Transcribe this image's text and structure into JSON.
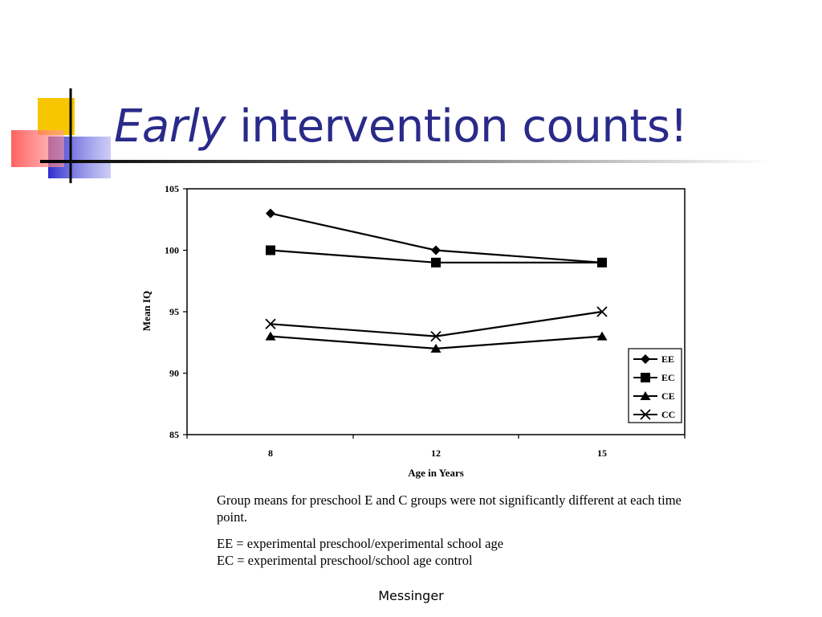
{
  "slide": {
    "title_emphasis": "Early",
    "title_rest": " intervention counts!",
    "footer": "Messinger"
  },
  "colors": {
    "title": "#2a2a8a",
    "ornament_yellow": "#f7c600",
    "ornament_blue": "#2e2ecc",
    "ornament_red": "#ff6b6b"
  },
  "caption": {
    "note": "Group means for preschool E and C groups were not significantly different at each time point.",
    "def_ee": "EE = experimental preschool/experimental school age",
    "def_ec": "EC = experimental preschool/school age control"
  },
  "chart_data": {
    "type": "line",
    "xlabel": "Age in Years",
    "ylabel": "Mean IQ",
    "categories": [
      "8",
      "12",
      "15"
    ],
    "ylim": [
      85,
      105
    ],
    "yticks": [
      85,
      90,
      95,
      100,
      105
    ],
    "legend_position": "right",
    "grid": false,
    "series": [
      {
        "name": "EE",
        "marker": "diamond",
        "values": [
          103,
          100,
          99
        ]
      },
      {
        "name": "EC",
        "marker": "square",
        "values": [
          100,
          99,
          99
        ]
      },
      {
        "name": "CE",
        "marker": "triangle",
        "values": [
          93,
          92,
          93
        ]
      },
      {
        "name": "CC",
        "marker": "x",
        "values": [
          94,
          93,
          95
        ]
      }
    ]
  }
}
